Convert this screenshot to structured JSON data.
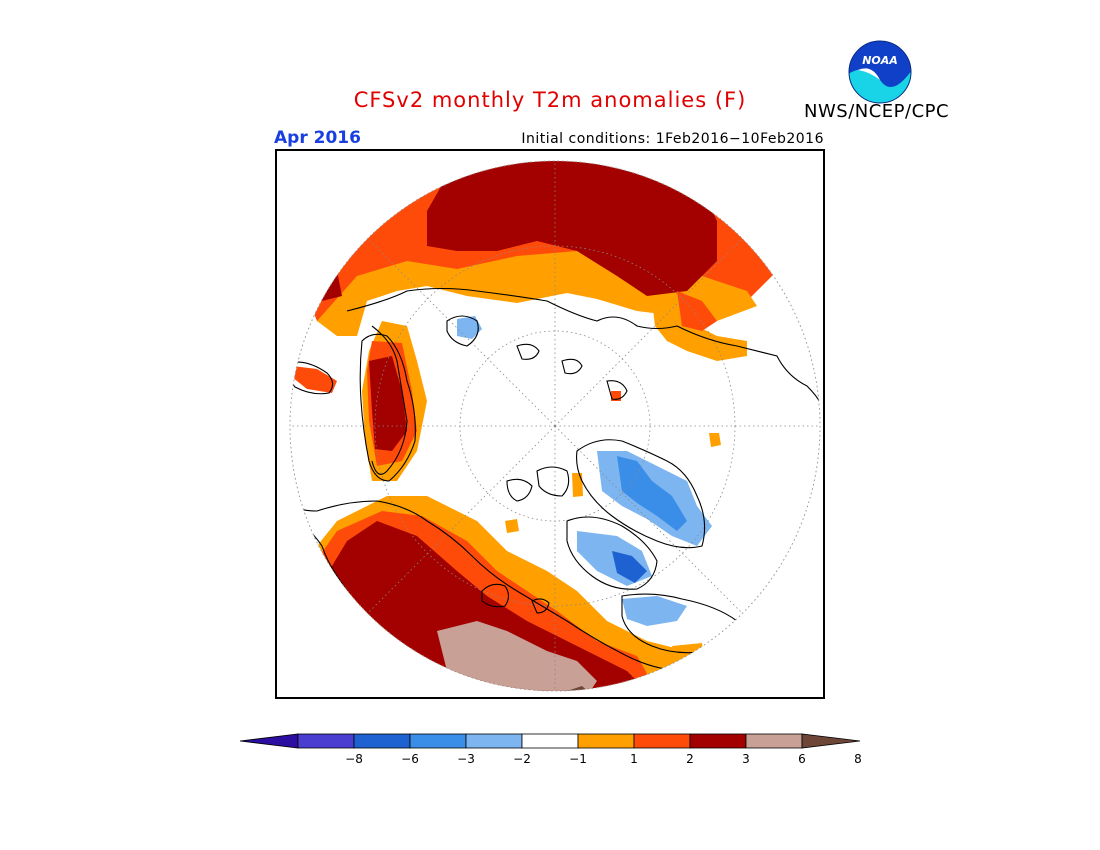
{
  "title": "CFSv2 monthly T2m anomalies (F)",
  "month": "Apr 2016",
  "initial_conditions": "Initial conditions: 1Feb2016−10Feb2016",
  "agency": "NWS/NCEP/CPC",
  "logo": {
    "name": "noaa-logo",
    "text": "NOAA",
    "colors": {
      "sky": "#1040c8",
      "sea": "#19d3e6"
    }
  },
  "colorbar": {
    "colors": [
      "#2c0fa0",
      "#4a3ed0",
      "#1d62d0",
      "#3a8ee8",
      "#7cb5f0",
      "#ffffff",
      "#ffa000",
      "#ff4b0a",
      "#a30000",
      "#c8a096",
      "#6e4638"
    ],
    "ticks": [
      "−8",
      "−6",
      "−3",
      "−2",
      "−1",
      "1",
      "2",
      "3",
      "6",
      "8"
    ]
  },
  "map_colors": {
    "brown": "#c8a096",
    "dark_brown": "#6e4638",
    "dark_red": "#a30000",
    "red": "#ff4b0a",
    "orange": "#ffa000",
    "light_blue": "#7cb5f0",
    "mid_blue": "#3a8ee8",
    "dark_blue": "#1d62d0"
  }
}
